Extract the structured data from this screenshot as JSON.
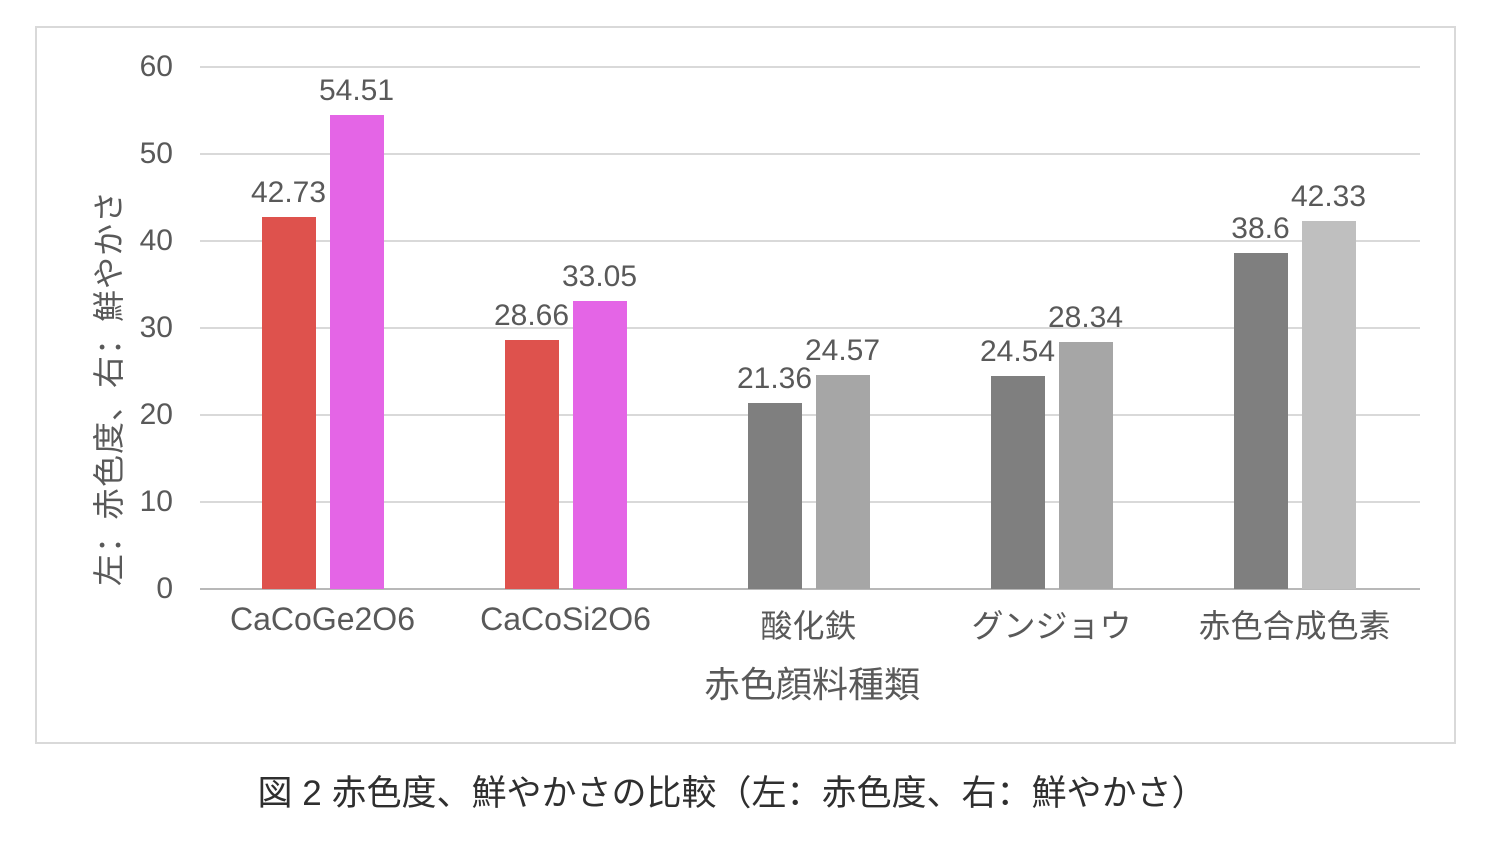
{
  "figure": {
    "caption": "図 2 赤色度、鮮やかさの比較（左：赤色度、右：鮮やかさ）"
  },
  "chart_data": {
    "type": "bar",
    "title": "",
    "xlabel": "赤色顔料種類",
    "ylabel": "左：赤色度、右：鮮やかさ",
    "ylim": [
      0,
      60
    ],
    "yticks": [
      0,
      10,
      20,
      30,
      40,
      50,
      60
    ],
    "grid": true,
    "legend": "none",
    "categories": [
      "CaCoGe2O6",
      "CaCoSi2O6",
      "酸化鉄",
      "グンジョウ",
      "赤色合成色素"
    ],
    "series": [
      {
        "name": "左：赤色度",
        "values": [
          42.73,
          28.66,
          21.36,
          24.54,
          38.6
        ],
        "labels": [
          "42.73",
          "28.66",
          "21.36",
          "24.54",
          "38.6"
        ],
        "colors": [
          "#de524d",
          "#de524d",
          "#7f7f7f",
          "#7f7f7f",
          "#7f7f7f"
        ]
      },
      {
        "name": "右：鮮やかさ",
        "values": [
          54.51,
          33.05,
          24.57,
          28.34,
          42.33
        ],
        "labels": [
          "54.51",
          "33.05",
          "24.57",
          "28.34",
          "42.33"
        ],
        "colors": [
          "#e465e6",
          "#e465e6",
          "#a6a6a6",
          "#a6a6a6",
          "#bfbfbf"
        ]
      }
    ]
  },
  "colors": {
    "grid": "#d9d9d9",
    "baseline": "#b8b8b8",
    "axis_text": "#595959",
    "data_label_text": "#595959",
    "caption_text": "#2f2f2f",
    "frame_border": "#d9d9d9",
    "background": "#ffffff",
    "bar_red": "#de524d",
    "bar_magenta": "#e465e6",
    "bar_dark_gray": "#7f7f7f",
    "bar_mid_gray": "#a6a6a6",
    "bar_light_gray": "#bfbfbf"
  }
}
